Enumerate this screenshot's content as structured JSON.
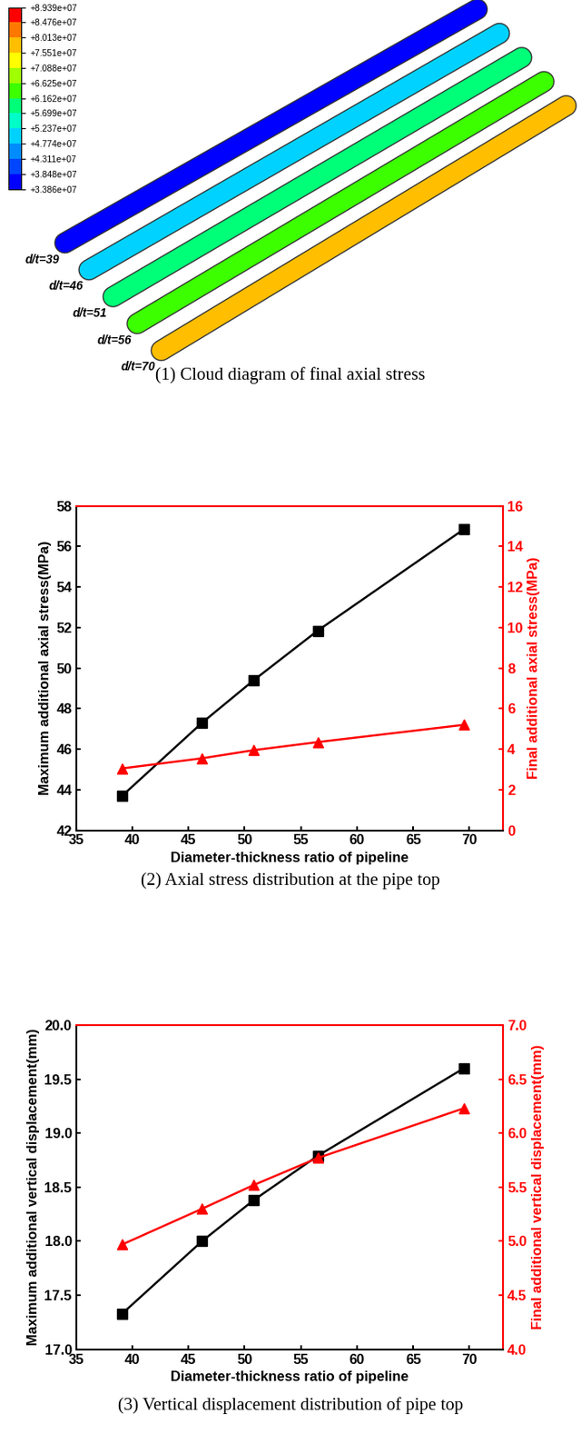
{
  "chart_data": [
    {
      "type": "contour_diagram",
      "caption": "(1) Cloud diagram of final axial stress",
      "colorbar": {
        "range": [
          33860000,
          89390000
        ],
        "ticks": [
          {
            "value": 33860000,
            "label": "+3.386e+07"
          },
          {
            "value": 38480000,
            "label": "+3.848e+07"
          },
          {
            "value": 43110000,
            "label": "+4.311e+07"
          },
          {
            "value": 47740000,
            "label": "+4.774e+07"
          },
          {
            "value": 52370000,
            "label": "+5.237e+07"
          },
          {
            "value": 56990000,
            "label": "+5.699e+07"
          },
          {
            "value": 61620000,
            "label": "+6.162e+07"
          },
          {
            "value": 66250000,
            "label": "+6.625e+07"
          },
          {
            "value": 70880000,
            "label": "+7.088e+07"
          },
          {
            "value": 75510000,
            "label": "+7.551e+07"
          },
          {
            "value": 80130000,
            "label": "+8.013e+07"
          },
          {
            "value": 84760000,
            "label": "+8.476e+07"
          },
          {
            "value": 89390000,
            "label": "+8.939e+07"
          }
        ]
      },
      "pipes": [
        {
          "label": "d/t=39",
          "value": 36000000
        },
        {
          "label": "d/t=46",
          "value": 48000000
        },
        {
          "label": "d/t=51",
          "value": 59000000
        },
        {
          "label": "d/t=56",
          "value": 63000000
        },
        {
          "label": "d/t=70",
          "value": 79000000
        }
      ]
    },
    {
      "type": "line",
      "caption": "(2) Axial stress distribution at the pipe top",
      "x_label": "Diameter-thickness ratio of pipeline",
      "y_label": "Maximum additional axial stress(MPa)",
      "y2_label": "Final additional axial stress(MPa)",
      "x": [
        39.1,
        46.2,
        50.8,
        56.5,
        69.5
      ],
      "xlim": [
        35,
        73
      ],
      "xticks": [
        35,
        40,
        45,
        50,
        55,
        60,
        65,
        70
      ],
      "ylim": [
        42,
        58
      ],
      "yticks": [
        42,
        44,
        46,
        48,
        50,
        52,
        54,
        56,
        58
      ],
      "y2lim": [
        0,
        16
      ],
      "y2ticks": [
        0,
        2,
        4,
        6,
        8,
        10,
        12,
        14,
        16
      ],
      "series": [
        {
          "axis": "y",
          "color": "#000000",
          "marker": "square",
          "values": [
            43.7,
            47.3,
            49.4,
            51.85,
            56.85
          ]
        },
        {
          "axis": "y2",
          "color": "#ff0000",
          "marker": "triangle",
          "values": [
            3.05,
            3.55,
            3.95,
            4.35,
            5.2
          ]
        }
      ]
    },
    {
      "type": "line",
      "caption": "(3) Vertical displacement distribution of pipe top",
      "x_label": "Diameter-thickness ratio of pipeline",
      "y_label": "Maximum additional vertical displacement(mm)",
      "y2_label": "Final additional vertical displacement(mm)",
      "x": [
        39.1,
        46.2,
        50.8,
        56.5,
        69.5
      ],
      "xlim": [
        35,
        73
      ],
      "xticks": [
        35,
        40,
        45,
        50,
        55,
        60,
        65,
        70
      ],
      "ylim": [
        17.0,
        20.0
      ],
      "yticks": [
        17.0,
        17.5,
        18.0,
        18.5,
        19.0,
        19.5,
        20.0
      ],
      "y2lim": [
        4.0,
        7.0
      ],
      "y2ticks": [
        4.0,
        4.5,
        5.0,
        5.5,
        6.0,
        6.5,
        7.0
      ],
      "series": [
        {
          "axis": "y",
          "color": "#000000",
          "marker": "square",
          "values": [
            17.33,
            18.0,
            18.38,
            18.79,
            19.6
          ]
        },
        {
          "axis": "y2",
          "color": "#ff0000",
          "marker": "triangle",
          "values": [
            4.97,
            5.3,
            5.52,
            5.77,
            6.23
          ]
        }
      ]
    }
  ]
}
